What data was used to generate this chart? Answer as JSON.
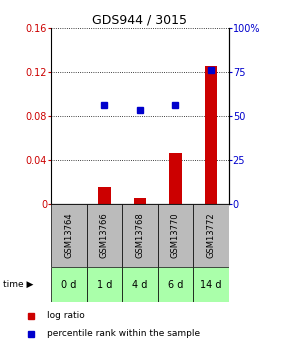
{
  "title": "GDS944 / 3015",
  "samples": [
    "GSM13764",
    "GSM13766",
    "GSM13768",
    "GSM13770",
    "GSM13772"
  ],
  "time_labels": [
    "0 d",
    "1 d",
    "4 d",
    "6 d",
    "14 d"
  ],
  "log_ratio": [
    0.0,
    0.015,
    0.005,
    0.046,
    0.125
  ],
  "percentile_rank_right": [
    null,
    56,
    53,
    56,
    76
  ],
  "ylim_left": [
    0,
    0.16
  ],
  "ylim_right": [
    0,
    100
  ],
  "yticks_left": [
    0,
    0.04,
    0.08,
    0.12,
    0.16
  ],
  "ytick_labels_left": [
    "0",
    "0.04",
    "0.08",
    "0.12",
    "0.16"
  ],
  "yticks_right": [
    0,
    25,
    50,
    75,
    100
  ],
  "ytick_labels_right": [
    "0",
    "25",
    "50",
    "75",
    "100%"
  ],
  "bar_color": "#cc0000",
  "point_color": "#0000cc",
  "bar_width": 0.35,
  "sample_bg_color": "#bbbbbb",
  "time_bg_color": "#aaffaa",
  "title_fontsize": 9,
  "tick_fontsize": 7
}
